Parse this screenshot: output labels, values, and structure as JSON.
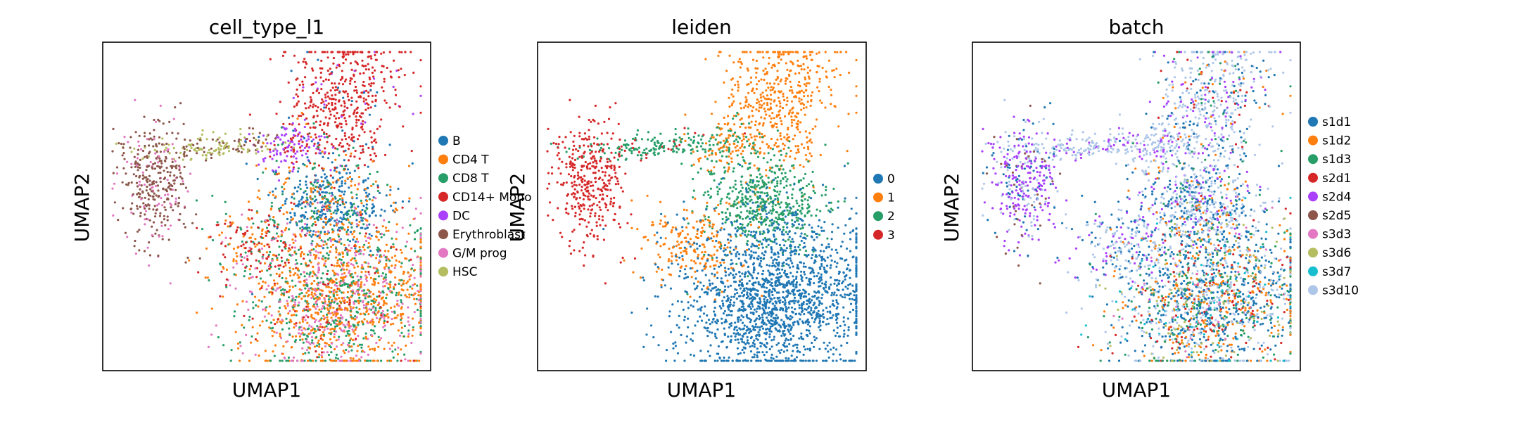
{
  "chart_data": [
    {
      "type": "scatter",
      "title": "cell_type_l1",
      "xlabel": "UMAP1",
      "ylabel": "UMAP2",
      "legend_position": "right",
      "grid": false,
      "ticks": false,
      "categories": [
        {
          "label": "B",
          "color": "#1f77b4"
        },
        {
          "label": "CD4 T",
          "color": "#ff7f0e"
        },
        {
          "label": "CD8 T",
          "color": "#279e68"
        },
        {
          "label": "CD14+ Mono",
          "color": "#d62728"
        },
        {
          "label": "DC",
          "color": "#aa40fc"
        },
        {
          "label": "Erythroblast",
          "color": "#8c564b"
        },
        {
          "label": "G/M prog",
          "color": "#e377c2"
        },
        {
          "label": "HSC",
          "color": "#b5bd61"
        }
      ]
    },
    {
      "type": "scatter",
      "title": "leiden",
      "xlabel": "UMAP1",
      "ylabel": "UMAP2",
      "legend_position": "right",
      "grid": false,
      "ticks": false,
      "categories": [
        {
          "label": "0",
          "color": "#1f77b4"
        },
        {
          "label": "1",
          "color": "#ff7f0e"
        },
        {
          "label": "2",
          "color": "#279e68"
        },
        {
          "label": "3",
          "color": "#d62728"
        }
      ]
    },
    {
      "type": "scatter",
      "title": "batch",
      "xlabel": "UMAP1",
      "ylabel": "UMAP2",
      "legend_position": "right",
      "grid": false,
      "ticks": false,
      "categories": [
        {
          "label": "s1d1",
          "color": "#1f77b4"
        },
        {
          "label": "s1d2",
          "color": "#ff7f0e"
        },
        {
          "label": "s1d3",
          "color": "#279e68"
        },
        {
          "label": "s2d1",
          "color": "#d62728"
        },
        {
          "label": "s2d4",
          "color": "#aa40fc"
        },
        {
          "label": "s2d5",
          "color": "#8c564b"
        },
        {
          "label": "s3d3",
          "color": "#e377c2"
        },
        {
          "label": "s3d6",
          "color": "#b5bd61"
        },
        {
          "label": "s3d7",
          "color": "#17becf"
        },
        {
          "label": "s3d10",
          "color": "#aec7e8"
        }
      ]
    }
  ]
}
